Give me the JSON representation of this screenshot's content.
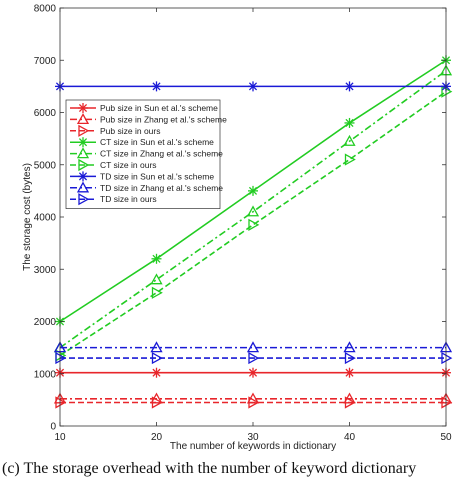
{
  "chart_data": {
    "type": "line",
    "title": "",
    "xlabel": "The number of keywords in dictionary",
    "ylabel": "The storage cost (bytes)",
    "x": [
      10,
      20,
      30,
      40,
      50
    ],
    "xticks": [
      "10",
      "20",
      "30",
      "40",
      "50"
    ],
    "xlim": [
      10,
      50
    ],
    "ylim": [
      0,
      8000
    ],
    "yticks": [
      "0",
      "1000",
      "2000",
      "3000",
      "4000",
      "5000",
      "6000",
      "7000",
      "8000"
    ],
    "grid": false,
    "legend_position": "upper-left",
    "series": [
      {
        "name": "Pub size in Sun et al.'s scheme",
        "color": "#e8262b",
        "dash": "solid",
        "marker": "asterisk",
        "values": [
          1020,
          1020,
          1020,
          1020,
          1020
        ]
      },
      {
        "name": "Pub size in Zhang et al.'s scheme",
        "color": "#e8262b",
        "dash": "dashdot",
        "marker": "triangle",
        "values": [
          520,
          520,
          520,
          520,
          520
        ]
      },
      {
        "name": "Pub size in ours",
        "color": "#e8262b",
        "dash": "dashed",
        "marker": "triangle-right",
        "values": [
          450,
          450,
          450,
          450,
          450
        ]
      },
      {
        "name": "CT size in Sun et al.'s scheme",
        "color": "#22cc22",
        "dash": "solid",
        "marker": "asterisk",
        "values": [
          2000,
          3200,
          4500,
          5800,
          7000
        ]
      },
      {
        "name": "CT size in Zhang et al.'s scheme",
        "color": "#22cc22",
        "dash": "dashdot",
        "marker": "triangle",
        "values": [
          1500,
          2800,
          4100,
          5450,
          6800
        ]
      },
      {
        "name": "CT size in ours",
        "color": "#22cc22",
        "dash": "dashed",
        "marker": "triangle-right",
        "values": [
          1350,
          2550,
          3850,
          5100,
          6400
        ]
      },
      {
        "name": "TD size in Sun et al.'s scheme",
        "color": "#1a1ad6",
        "dash": "solid",
        "marker": "asterisk",
        "values": [
          6500,
          6500,
          6500,
          6500,
          6500
        ]
      },
      {
        "name": "TD size in Zhang et al.'s scheme",
        "color": "#1a1ad6",
        "dash": "dashdot",
        "marker": "triangle",
        "values": [
          1500,
          1500,
          1500,
          1500,
          1500
        ]
      },
      {
        "name": "TD size in ours",
        "color": "#1a1ad6",
        "dash": "dashed",
        "marker": "triangle-right",
        "values": [
          1300,
          1300,
          1300,
          1300,
          1300
        ]
      }
    ]
  },
  "caption": "(c) The storage overhead with the number of keyword dictionary"
}
